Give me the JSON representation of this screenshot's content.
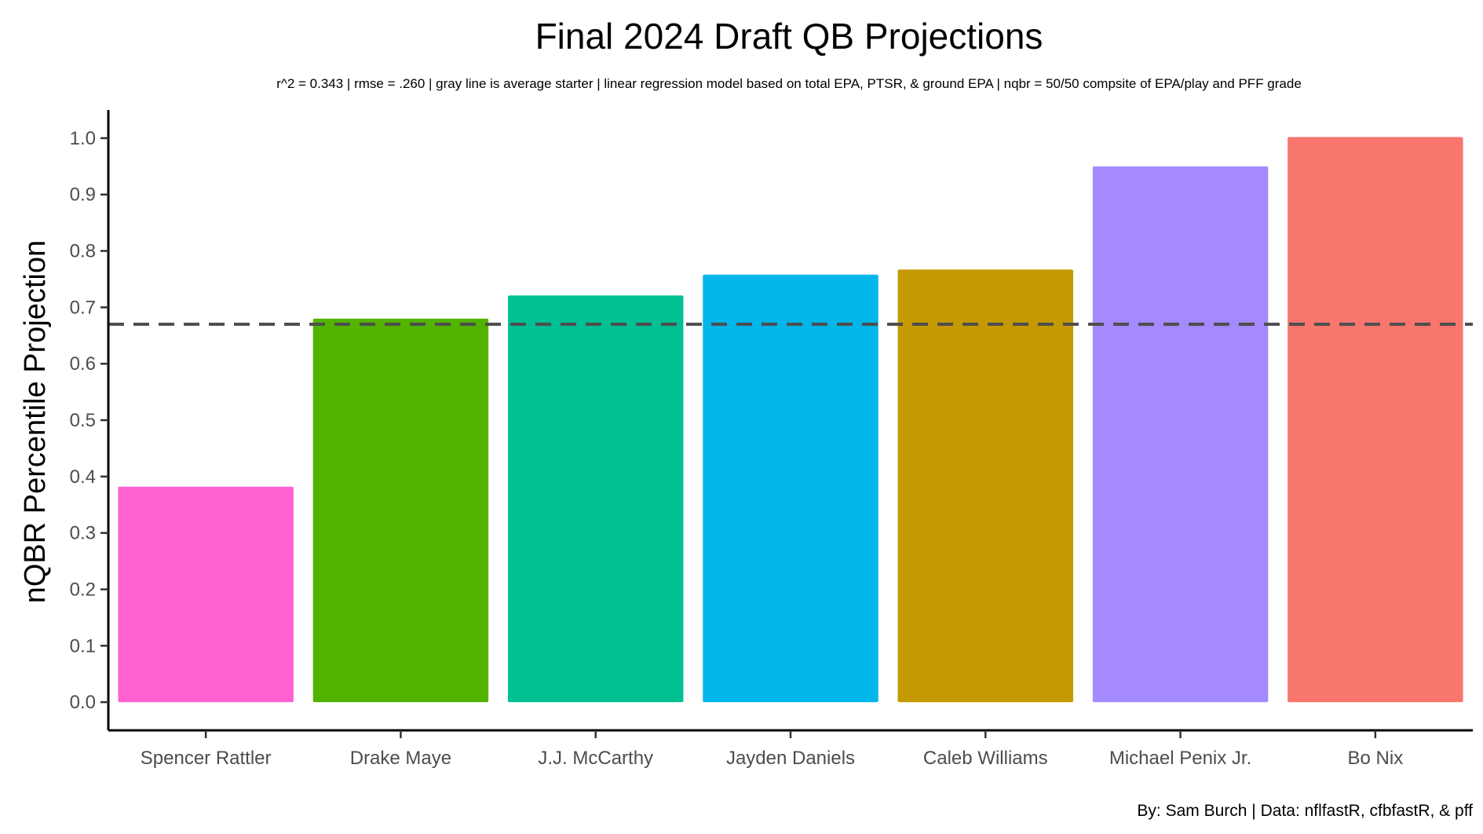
{
  "chart_data": {
    "type": "bar",
    "title": "Final 2024 Draft QB Projections",
    "subtitle": "r^2 = 0.343  |  rmse = .260  |  gray line is average starter  |  linear regression model based on total EPA, PTSR, & ground EPA  |  nqbr = 50/50 compsite of EPA/play and PFF grade",
    "xlabel": "",
    "ylabel": "nQBR Percentile Projection",
    "caption": "By: Sam Burch  |  Data: nflfastR, cfbfastR, & pff",
    "categories": [
      "Spencer Rattler",
      "Drake Maye",
      "J.J. McCarthy",
      "Jayden Daniels",
      "Caleb Williams",
      "Michael Penix Jr.",
      "Bo Nix"
    ],
    "values": [
      0.382,
      0.68,
      0.721,
      0.758,
      0.767,
      0.95,
      1.002
    ],
    "colors": [
      "#FF61D2",
      "#53B400",
      "#00C094",
      "#00B6EB",
      "#C49A00",
      "#A58AFF",
      "#F8766D"
    ],
    "ylim": [
      -0.05,
      1.05
    ],
    "yticks": [
      0.0,
      0.1,
      0.2,
      0.3,
      0.4,
      0.5,
      0.6,
      0.7,
      0.8,
      0.9,
      1.0
    ],
    "ytick_labels": [
      "0.0",
      "0.1",
      "0.2",
      "0.3",
      "0.4",
      "0.5",
      "0.6",
      "0.7",
      "0.8",
      "0.9",
      "1.0"
    ],
    "reference_line": {
      "y": 0.67,
      "style": "dashed",
      "color": "#4d4d4d"
    },
    "grid": false,
    "legend": "none"
  }
}
